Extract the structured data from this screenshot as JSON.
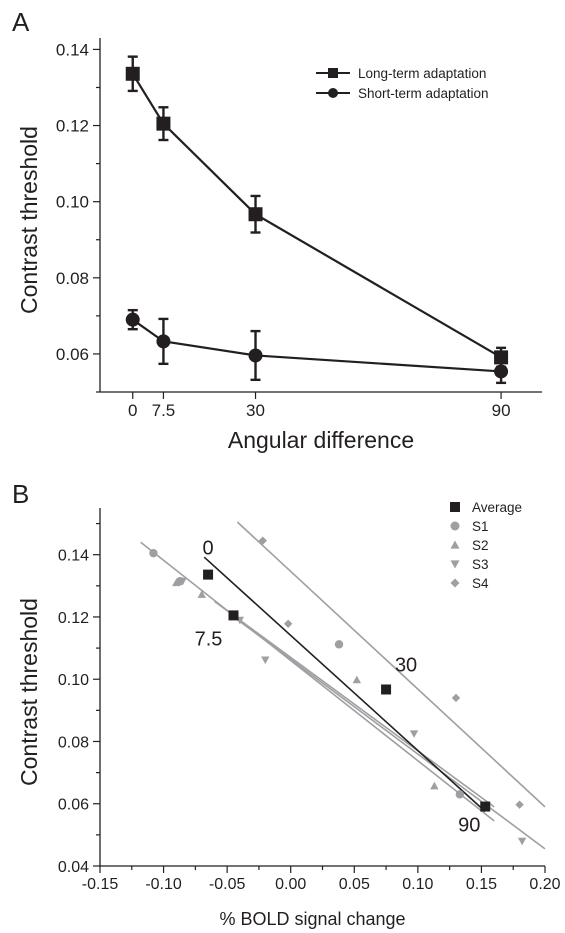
{
  "chart_data": [
    {
      "type": "line",
      "panel_label": "A",
      "xlabel": "Angular difference",
      "ylabel": "Contrast threshold",
      "xlim": [
        -8,
        100
      ],
      "ylim": [
        0.05,
        0.143
      ],
      "x_ticks": [
        0,
        7.5,
        30,
        90
      ],
      "x_tick_labels": [
        "0",
        "7.5",
        "30",
        "90"
      ],
      "y_ticks": [
        0.06,
        0.08,
        0.1,
        0.12,
        0.14
      ],
      "y_tick_labels": [
        "0.06",
        "0.08",
        "0.10",
        "0.12",
        "0.14"
      ],
      "grid": false,
      "legend_position": "top-right",
      "series": [
        {
          "name": "Long-term adaptation",
          "marker": "square",
          "color": "#231f20",
          "x": [
            0,
            7.5,
            30,
            90
          ],
          "y": [
            0.1336,
            0.1205,
            0.0967,
            0.0591
          ],
          "error": [
            0.0045,
            0.0043,
            0.0048,
            0.0025
          ]
        },
        {
          "name": "Short-term adaptation",
          "marker": "circle",
          "color": "#231f20",
          "x": [
            0,
            7.5,
            30,
            90
          ],
          "y": [
            0.069,
            0.0633,
            0.0596,
            0.0554
          ],
          "error": [
            0.0025,
            0.0059,
            0.0064,
            0.003
          ]
        }
      ]
    },
    {
      "type": "scatter",
      "panel_label": "B",
      "xlabel": "% BOLD signal change",
      "ylabel": "Contrast threshold",
      "xlim": [
        -0.15,
        0.2
      ],
      "ylim": [
        0.04,
        0.155
      ],
      "x_ticks": [
        -0.15,
        -0.1,
        -0.05,
        0.0,
        0.05,
        0.1,
        0.15,
        0.2
      ],
      "x_tick_labels": [
        "-0.15",
        "-0.10",
        "-0.05",
        "0.00",
        "0.05",
        "0.10",
        "0.15",
        "0.20"
      ],
      "y_ticks": [
        0.04,
        0.06,
        0.08,
        0.1,
        0.12,
        0.14
      ],
      "y_tick_labels": [
        "0.04",
        "0.06",
        "0.08",
        "0.10",
        "0.12",
        "0.14"
      ],
      "grid": false,
      "legend_position": "top-right",
      "series": [
        {
          "name": "Average",
          "marker": "square",
          "color": "#231f20",
          "points": [
            [
              -0.065,
              0.1336
            ],
            [
              -0.045,
              0.1205
            ],
            [
              0.075,
              0.0967
            ],
            [
              0.153,
              0.0591
            ]
          ],
          "point_labels": [
            "0",
            "7.5",
            "30",
            "90"
          ],
          "fit": [
            [
              -0.068,
              0.1392
            ],
            [
              0.153,
              0.0575
            ]
          ]
        },
        {
          "name": "S1",
          "marker": "circle",
          "color": "#9d9fa2",
          "points": [
            [
              -0.108,
              0.1405
            ],
            [
              -0.087,
              0.1315
            ],
            [
              0.038,
              0.1112
            ],
            [
              0.133,
              0.063
            ]
          ],
          "fit": [
            [
              -0.118,
              0.144
            ],
            [
              0.16,
              0.0545
            ]
          ]
        },
        {
          "name": "S2",
          "marker": "triangle-up",
          "color": "#9d9fa2",
          "points": [
            [
              -0.09,
              0.131
            ],
            [
              -0.07,
              0.1272
            ],
            [
              0.052,
              0.0998
            ],
            [
              0.113,
              0.0657
            ]
          ],
          "fit": [
            [
              -0.06,
              0.125
            ],
            [
              0.16,
              0.059
            ]
          ]
        },
        {
          "name": "S3",
          "marker": "triangle-down",
          "color": "#9d9fa2",
          "points": [
            [
              -0.085,
              0.1315
            ],
            [
              -0.04,
              0.119
            ],
            [
              -0.02,
              0.1062
            ],
            [
              0.097,
              0.0825
            ],
            [
              0.182,
              0.048
            ]
          ],
          "fit": [
            [
              -0.048,
              0.121
            ],
            [
              0.2,
              0.0455
            ]
          ]
        },
        {
          "name": "S4",
          "marker": "diamond",
          "color": "#9d9fa2",
          "points": [
            [
              -0.022,
              0.1445
            ],
            [
              -0.002,
              0.1178
            ],
            [
              0.13,
              0.094
            ],
            [
              0.18,
              0.0597
            ]
          ],
          "fit": [
            [
              -0.042,
              0.1505
            ],
            [
              0.2,
              0.059
            ]
          ]
        }
      ]
    }
  ]
}
